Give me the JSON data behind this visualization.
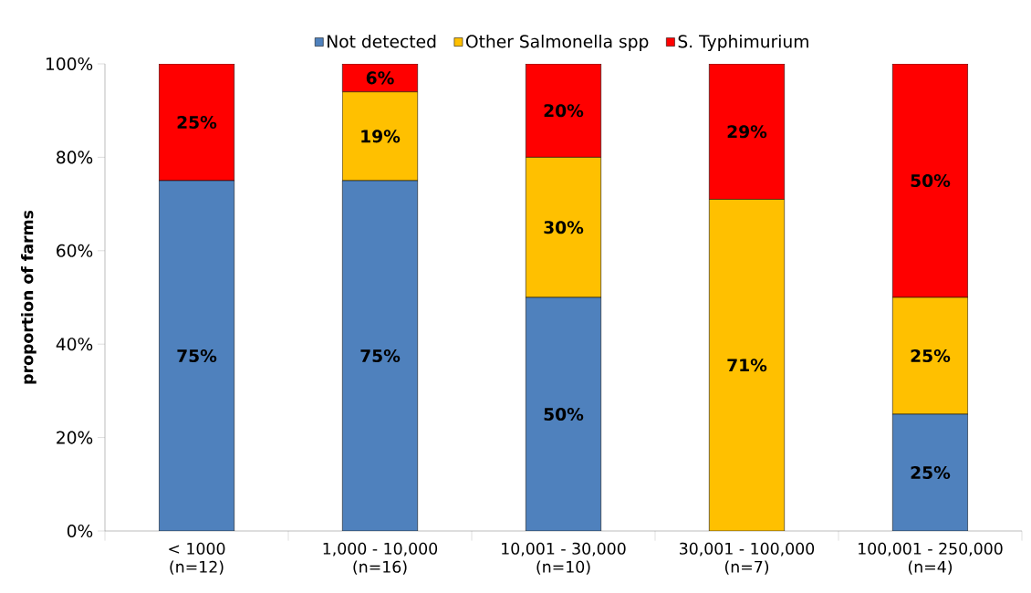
{
  "chart_data": {
    "type": "bar",
    "stacked": true,
    "ylabel": "proportion of farms",
    "categories": [
      "< 1000\n(n=12)",
      "1,000 - 10,000\n(n=16)",
      "10,001 - 30,000\n(n=10)",
      "30,001 - 100,000\n(n=7)",
      "100,001 - 250,000\n(n=4)"
    ],
    "series": [
      {
        "name": "Not detected",
        "color": "#4f81bd",
        "values": [
          75,
          75,
          50,
          0,
          25
        ],
        "value_labels": [
          "75%",
          "75%",
          "50%",
          null,
          "25%"
        ]
      },
      {
        "name": "Other Salmonella spp",
        "color": "#ffc000",
        "values": [
          0,
          19,
          30,
          71,
          25
        ],
        "value_labels": [
          null,
          "19%",
          "30%",
          "71%",
          "25%"
        ]
      },
      {
        "name": "S. Typhimurium",
        "color": "#ff0000",
        "values": [
          25,
          6,
          20,
          29,
          50
        ],
        "value_labels": [
          "25%",
          "6%",
          "20%",
          "29%",
          "50%"
        ]
      }
    ],
    "ylim": [
      0,
      100
    ],
    "yticks": [
      {
        "value": 0,
        "label": "0%"
      },
      {
        "value": 20,
        "label": "20%"
      },
      {
        "value": 40,
        "label": "40%"
      },
      {
        "value": 60,
        "label": "60%"
      },
      {
        "value": 80,
        "label": "80%"
      },
      {
        "value": 100,
        "label": "100%"
      }
    ],
    "grid": false,
    "legend": "top"
  }
}
